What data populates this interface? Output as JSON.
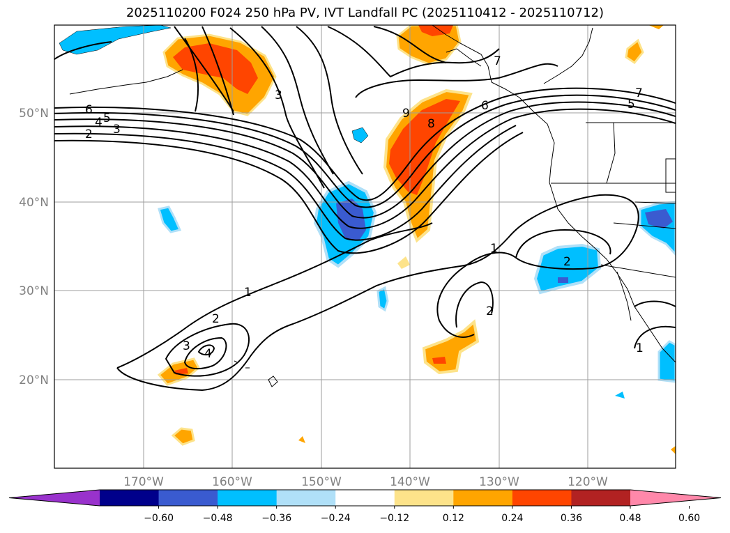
{
  "title": "2025110200 F024 250 hPa PV, IVT Landfall PC (2025110412 - 2025110712)",
  "lat_labels": [
    "50°N",
    "40°N",
    "30°N",
    "20°N"
  ],
  "lon_labels": [
    "170°W",
    "160°W",
    "150°W",
    "140°W",
    "130°W",
    "120°W"
  ],
  "colorbar": {
    "ticks": [
      "−0.60",
      "−0.48",
      "−0.36",
      "−0.24",
      "−0.12",
      "0.12",
      "0.24",
      "0.36",
      "0.48",
      "0.60"
    ],
    "colors": [
      "#9932cc",
      "#00008b",
      "#3a5bd0",
      "#00bfff",
      "#b0e0f8",
      "#ffffff",
      "#fde38a",
      "#ffa500",
      "#ff4500",
      "#b22222",
      "#ff88aa"
    ]
  },
  "contour_labels": [
    "6",
    "5",
    "4",
    "3",
    "2",
    "3",
    "9",
    "8",
    "6",
    "7",
    "7",
    "5",
    "1",
    "2",
    "2",
    "3",
    "4",
    "1",
    "2",
    "1"
  ],
  "colors": {
    "axis": "#808080",
    "contour": "#000000"
  }
}
